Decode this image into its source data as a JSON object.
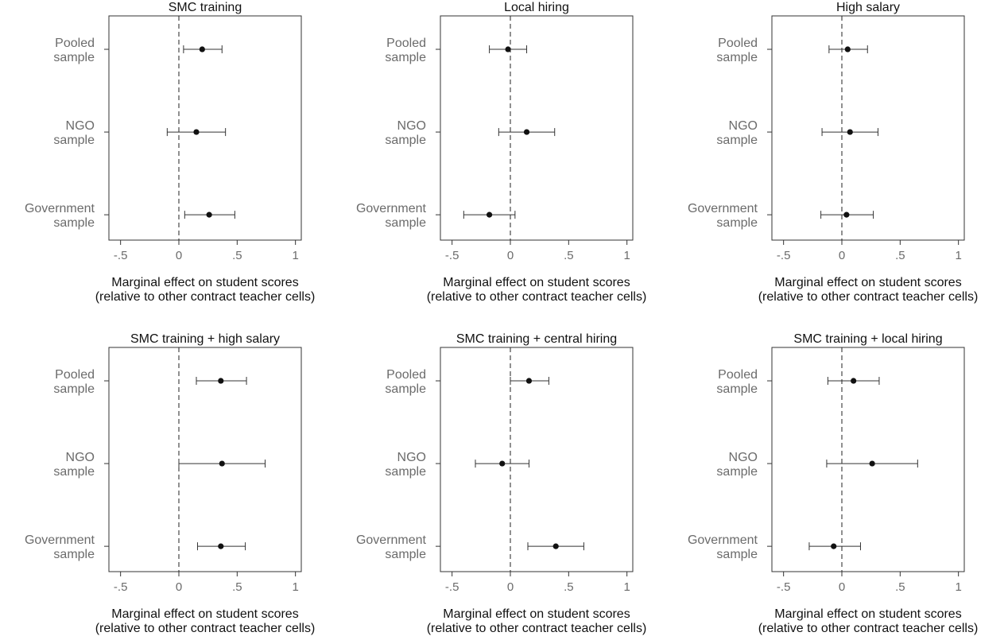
{
  "chart_data": [
    {
      "type": "scatter",
      "title": "SMC training",
      "categories": [
        "Pooled\nsample",
        "NGO\nsample",
        "Government\nsample"
      ],
      "estimates": [
        0.2,
        0.15,
        0.26
      ],
      "ci_low": [
        0.04,
        -0.1,
        0.05
      ],
      "ci_high": [
        0.37,
        0.4,
        0.48
      ],
      "xlabel": "Marginal effect on student scores\n(relative to other contract teacher cells)",
      "xticks": [
        -0.5,
        0,
        0.5,
        1
      ],
      "xticklabels": [
        "-.5",
        "0",
        ".5",
        "1"
      ],
      "xlim": [
        -0.6,
        1.05
      ],
      "reference_line": 0
    },
    {
      "type": "scatter",
      "title": "Local hiring",
      "categories": [
        "Pooled\nsample",
        "NGO\nsample",
        "Government\nsample"
      ],
      "estimates": [
        -0.02,
        0.14,
        -0.18
      ],
      "ci_low": [
        -0.18,
        -0.1,
        -0.4
      ],
      "ci_high": [
        0.14,
        0.38,
        0.04
      ],
      "xlabel": "Marginal effect on student scores\n(relative to other contract teacher cells)",
      "xticks": [
        -0.5,
        0,
        0.5,
        1
      ],
      "xticklabels": [
        "-.5",
        "0",
        ".5",
        "1"
      ],
      "xlim": [
        -0.6,
        1.05
      ],
      "reference_line": 0
    },
    {
      "type": "scatter",
      "title": "High salary",
      "categories": [
        "Pooled\nsample",
        "NGO\nsample",
        "Government\nsample"
      ],
      "estimates": [
        0.05,
        0.07,
        0.04
      ],
      "ci_low": [
        -0.11,
        -0.17,
        -0.18
      ],
      "ci_high": [
        0.22,
        0.31,
        0.27
      ],
      "xlabel": "Marginal effect on student scores\n(relative to other contract teacher cells)",
      "xticks": [
        -0.5,
        0,
        0.5,
        1
      ],
      "xticklabels": [
        "-.5",
        "0",
        ".5",
        "1"
      ],
      "xlim": [
        -0.6,
        1.05
      ],
      "reference_line": 0
    },
    {
      "type": "scatter",
      "title": "SMC training + high salary",
      "categories": [
        "Pooled\nsample",
        "NGO\nsample",
        "Government\nsample"
      ],
      "estimates": [
        0.36,
        0.37,
        0.36
      ],
      "ci_low": [
        0.15,
        0.0,
        0.16
      ],
      "ci_high": [
        0.58,
        0.74,
        0.57
      ],
      "xlabel": "Marginal effect on student scores\n(relative to other contract teacher cells)",
      "xticks": [
        -0.5,
        0,
        0.5,
        1
      ],
      "xticklabels": [
        "-.5",
        "0",
        ".5",
        "1"
      ],
      "xlim": [
        -0.6,
        1.05
      ],
      "reference_line": 0
    },
    {
      "type": "scatter",
      "title": "SMC training + central hiring",
      "categories": [
        "Pooled\nsample",
        "NGO\nsample",
        "Government\nsample"
      ],
      "estimates": [
        0.16,
        -0.07,
        0.39
      ],
      "ci_low": [
        0.0,
        -0.3,
        0.15
      ],
      "ci_high": [
        0.33,
        0.16,
        0.63
      ],
      "xlabel": "Marginal effect on student scores\n(relative to other contract teacher cells)",
      "xticks": [
        -0.5,
        0,
        0.5,
        1
      ],
      "xticklabels": [
        "-.5",
        "0",
        ".5",
        "1"
      ],
      "xlim": [
        -0.6,
        1.05
      ],
      "reference_line": 0
    },
    {
      "type": "scatter",
      "title": "SMC training + local hiring",
      "categories": [
        "Pooled\nsample",
        "NGO\nsample",
        "Government\nsample"
      ],
      "estimates": [
        0.1,
        0.26,
        -0.07
      ],
      "ci_low": [
        -0.12,
        -0.13,
        -0.28
      ],
      "ci_high": [
        0.32,
        0.65,
        0.16
      ],
      "xlabel": "Marginal effect on student scores\n(relative to other contract teacher cells)",
      "xticks": [
        -0.5,
        0,
        0.5,
        1
      ],
      "xticklabels": [
        "-.5",
        "0",
        ".5",
        "1"
      ],
      "xlim": [
        -0.6,
        1.05
      ],
      "reference_line": 0
    }
  ]
}
